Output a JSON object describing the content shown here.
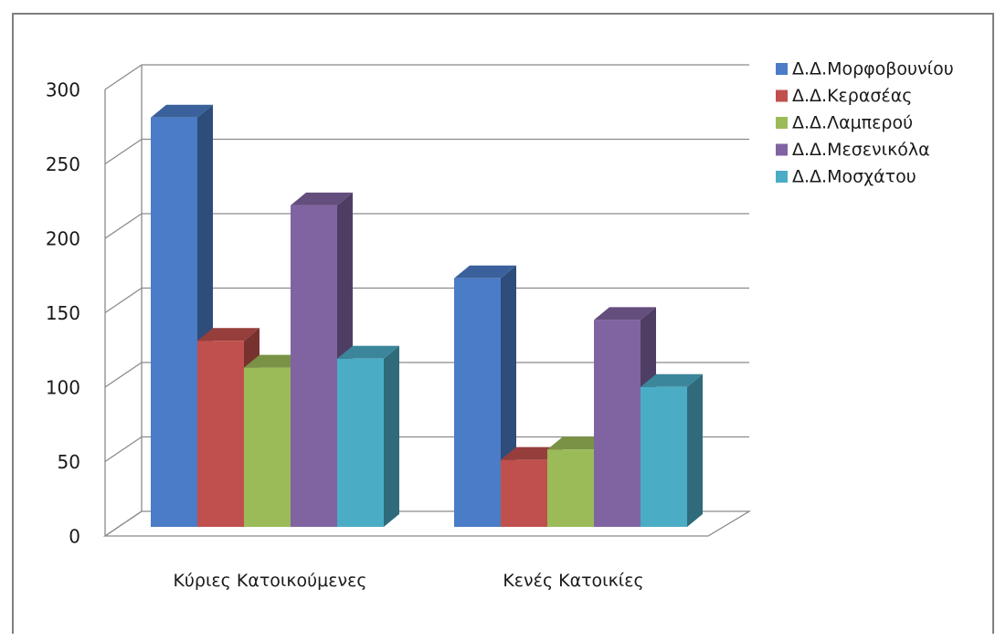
{
  "chart_data": {
    "type": "bar",
    "style": "3d-clustered-column",
    "categories": [
      "Κύριες Κατοικούμενες",
      "Κενές Κατοικίες"
    ],
    "series": [
      {
        "name": "Δ.Δ.Μορφοβουνίου",
        "color": "#4a7cc7",
        "values": [
          275,
          167
        ]
      },
      {
        "name": "Δ.Δ.Κερασέας",
        "color": "#c0504d",
        "values": [
          125,
          45
        ]
      },
      {
        "name": "Δ.Δ.Λαμπερού",
        "color": "#9bbb59",
        "values": [
          107,
          52
        ]
      },
      {
        "name": "Δ.Δ.Μεσενικόλα",
        "color": "#8064a2",
        "values": [
          216,
          139
        ]
      },
      {
        "name": "Δ.Δ.Μοσχάτου",
        "color": "#4bacc6",
        "values": [
          113,
          94
        ]
      }
    ],
    "yticks": [
      0,
      50,
      100,
      150,
      200,
      250,
      300
    ],
    "ylim": [
      0,
      300
    ],
    "grid": true,
    "legend": "right",
    "title": "",
    "xlabel": "",
    "ylabel": ""
  }
}
